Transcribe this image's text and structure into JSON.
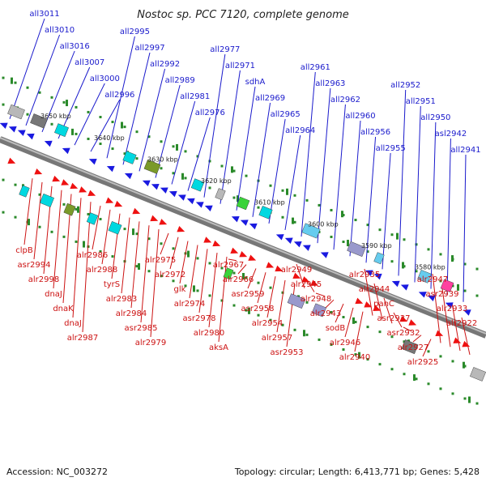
{
  "title": "Nostoc sp. PCC 7120, complete genome",
  "footer": {
    "accession": "Accession: NC_003272",
    "summary": "Topology: circular; Length: 6,413,771 bp; Genes: 5,428"
  },
  "colors": {
    "upper_label": "#1a1acc",
    "lower_label": "#cc1111",
    "backbone": "#777777",
    "tick": "#2a8a2a"
  },
  "kbp_labels": [
    "3650 kbp",
    "3640 kbp",
    "3630 kbp",
    "3620 kbp",
    "3610 kbp",
    "3600 kbp",
    "3590 kbp",
    "3580 kbp"
  ],
  "upper_genes": [
    "all3011",
    "all3010",
    "all3016",
    "all3007",
    "all3000",
    "all2996",
    "all2995",
    "all2997",
    "all2992",
    "all2989",
    "all2981",
    "all2976",
    "all2977",
    "all2971",
    "sdhA",
    "all2969",
    "all2965",
    "all2964",
    "all2961",
    "all2963",
    "all2962",
    "all2960",
    "all2956",
    "all2955",
    "all2952",
    "all2951",
    "all2950",
    "asl2942",
    "all2941"
  ],
  "lower_genes": [
    "clpB",
    "asr2994",
    "alr2998",
    "dnaJ",
    "dnaK",
    "dnaJ",
    "alr2987",
    "alr2986",
    "alr2988",
    "tyrS",
    "alr2983",
    "alr2984",
    "asr2985",
    "alr2979",
    "alr2975",
    "alr2972",
    "glk",
    "alr2974",
    "asr2978",
    "alr2980",
    "aksA",
    "alr2967",
    "alr2966",
    "asr2959",
    "asr2958",
    "alr2954",
    "alr2957",
    "asr2953",
    "alr2949",
    "alr2945",
    "alr2948",
    "alr2943",
    "sodB",
    "alr2946",
    "alr2940",
    "alr2935",
    "alr2944",
    "panC",
    "asr2937",
    "asr2932",
    "alr2927",
    "alr2925",
    "alr2947",
    "asr2939",
    "alr2933",
    "alr2922"
  ]
}
